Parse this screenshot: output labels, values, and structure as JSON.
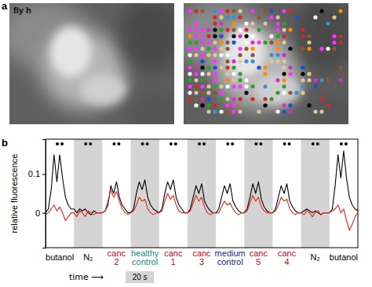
{
  "figure": {
    "panel_labels": [
      "a",
      "b"
    ],
    "image_label": "fly h"
  },
  "chart_data": {
    "type": "line",
    "y_label": "relative fluorescence",
    "x_label": "time ⟶",
    "tick_labels": "y",
    "xlim": [
      0,
      220
    ],
    "ylim": [
      -0.09,
      0.19
    ],
    "yticks": [
      0,
      0.1
    ],
    "x": [
      0,
      2,
      4,
      6,
      8,
      10,
      12,
      14,
      16,
      18,
      20,
      22,
      24,
      26,
      28,
      30,
      32,
      34,
      36,
      38,
      40,
      42,
      44,
      46,
      48,
      50,
      52,
      54,
      56,
      58,
      60,
      62,
      64,
      66,
      68,
      70,
      72,
      74,
      76,
      78,
      80,
      82,
      84,
      86,
      88,
      90,
      92,
      94,
      96,
      98,
      100,
      102,
      104,
      106,
      108,
      110,
      112,
      114,
      116,
      118,
      120,
      122,
      124,
      126,
      128,
      130,
      132,
      134,
      136,
      138,
      140,
      142,
      144,
      146,
      148,
      150,
      152,
      154,
      156,
      158,
      160,
      162,
      164,
      166,
      168,
      170,
      172,
      174,
      176,
      178,
      180,
      182,
      184,
      186,
      188,
      190,
      192,
      194,
      196,
      198,
      200,
      202,
      204,
      206,
      208,
      210,
      212,
      214,
      216,
      218,
      220
    ],
    "series": [
      {
        "color": "#000000",
        "values": [
          0,
          0.01,
          0.06,
          0.15,
          0.08,
          0.15,
          0.09,
          0.04,
          0.02,
          0.01,
          0.01,
          0,
          0.01,
          0.005,
          0.01,
          0,
          -0.005,
          0.005,
          0,
          0,
          0,
          0.005,
          0.02,
          0.07,
          0.05,
          0.08,
          0.04,
          0.02,
          0.01,
          0,
          0,
          0.01,
          0.05,
          0.08,
          0.06,
          0.085,
          0.04,
          0.02,
          0.01,
          0.005,
          0,
          0.01,
          0.05,
          0.08,
          0.06,
          0.085,
          0.04,
          0.02,
          0.01,
          0,
          0,
          0.01,
          0.04,
          0.07,
          0.05,
          0.075,
          0.03,
          0.015,
          0.005,
          0,
          0,
          0.01,
          0.04,
          0.07,
          0.05,
          0.075,
          0.03,
          0.015,
          0.005,
          0,
          0,
          0.01,
          0.04,
          0.075,
          0.05,
          0.08,
          0.035,
          0.015,
          0.005,
          0,
          0,
          0.01,
          0.04,
          0.07,
          0.05,
          0.075,
          0.03,
          0.015,
          0.005,
          0,
          0,
          0.005,
          0.01,
          0.005,
          0,
          0.005,
          0,
          -0.005,
          0,
          0,
          0,
          0.01,
          0.07,
          0.15,
          0.09,
          0.16,
          0.09,
          0.04,
          0.02,
          0.01,
          0.005
        ]
      },
      {
        "color": "#e3241b",
        "values": [
          -0.005,
          0,
          0.01,
          0.02,
          0.005,
          0.015,
          0,
          -0.02,
          -0.01,
          0,
          0,
          -0.01,
          0.005,
          0,
          -0.01,
          0.005,
          0,
          -0.005,
          0,
          0,
          0,
          0.005,
          0.03,
          0.06,
          0.04,
          0.055,
          0.03,
          0.01,
          0,
          -0.005,
          0,
          0.005,
          0.02,
          0.04,
          0.03,
          0.035,
          0.01,
          0,
          -0.005,
          0,
          0,
          0.005,
          0.03,
          0.05,
          0.035,
          0.045,
          0.02,
          0.005,
          0,
          0,
          0,
          0.005,
          0.025,
          0.045,
          0.03,
          0.04,
          0.015,
          0,
          -0.005,
          0,
          0,
          0,
          0.015,
          0.03,
          0.02,
          0.025,
          0.01,
          0,
          -0.005,
          0,
          0,
          0.005,
          0.025,
          0.045,
          0.03,
          0.04,
          0.015,
          0.005,
          0,
          0,
          0,
          0.005,
          0.02,
          0.04,
          0.03,
          0.035,
          0.01,
          0,
          -0.005,
          0,
          0,
          -0.005,
          0.005,
          0,
          -0.01,
          0,
          0.005,
          -0.005,
          0,
          0,
          0,
          0.005,
          0.01,
          0.02,
          0,
          0.01,
          -0.02,
          -0.045,
          -0.03,
          -0.01,
          0
        ]
      }
    ],
    "stimuli": [
      {
        "label": [
          "butanol"
        ],
        "color": "#000000",
        "start": 0,
        "end": 20
      },
      {
        "label": [
          "N₂"
        ],
        "color": "#000000",
        "start": 20,
        "end": 40
      },
      {
        "label": [
          "canc",
          "2"
        ],
        "color": "#d0021b",
        "start": 40,
        "end": 60
      },
      {
        "label": [
          "healthy",
          "control"
        ],
        "color": "#138a8a",
        "start": 60,
        "end": 80
      },
      {
        "label": [
          "canc",
          "1"
        ],
        "color": "#d0021b",
        "start": 80,
        "end": 100
      },
      {
        "label": [
          "canc",
          "3"
        ],
        "color": "#d0021b",
        "start": 100,
        "end": 120
      },
      {
        "label": [
          "medium",
          "control"
        ],
        "color": "#1a2a80",
        "start": 120,
        "end": 140
      },
      {
        "label": [
          "canc",
          "5"
        ],
        "color": "#d0021b",
        "start": 140,
        "end": 160
      },
      {
        "label": [
          "canc",
          "4"
        ],
        "color": "#d0021b",
        "start": 160,
        "end": 180
      },
      {
        "label": [
          "N₂"
        ],
        "color": "#000000",
        "start": 180,
        "end": 200
      },
      {
        "label": [
          "butanol"
        ],
        "color": "#000000",
        "start": 200,
        "end": 220
      }
    ],
    "scale_bar": {
      "value": 20,
      "label": "20 s"
    }
  }
}
